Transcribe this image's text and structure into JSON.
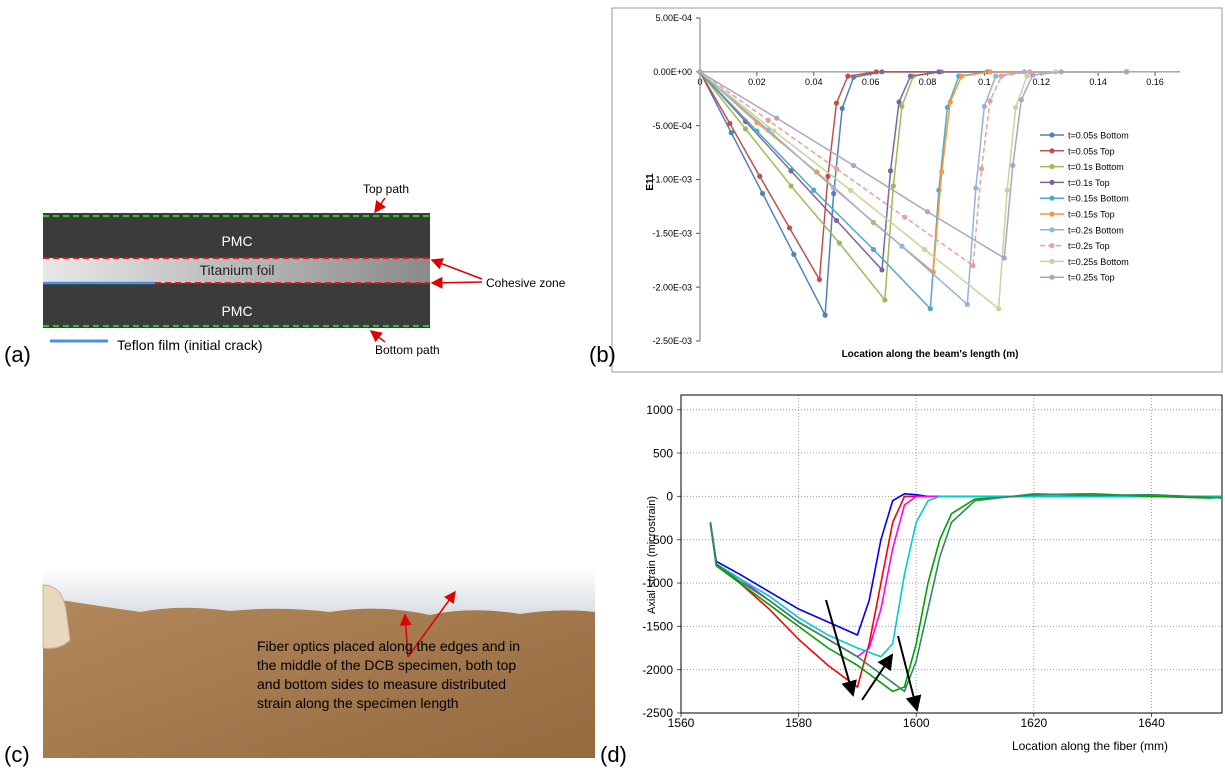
{
  "panel_labels": [
    "(a)",
    "(b)",
    "(c)",
    "(d)"
  ],
  "diagram": {
    "top_path": "Top path",
    "pmc_top": "PMC",
    "foil": "Titanium foil",
    "cohesive_zone": "Cohesive zone",
    "pmc_bottom": "PMC",
    "bottom_path": "Bottom path",
    "legend": "Teflon film (initial crack)"
  },
  "photo": {
    "caption_lines": [
      "Fiber optics placed along the edges and in",
      "the middle of the DCB specimen, both top",
      "and bottom sides to measure distributed",
      "strain along the specimen length"
    ]
  },
  "chart_data": [
    {
      "type": "line",
      "xlabel": "Location along the beam's length (m)",
      "ylabel": "E11",
      "xlim": [
        0,
        0.16
      ],
      "xticks": [
        0,
        0.02,
        0.04,
        0.06,
        0.08,
        0.1,
        0.12,
        0.14,
        0.16
      ],
      "ylim": [
        -0.0025,
        0.0005
      ],
      "yticks": [
        {
          "value": 0.0005,
          "label": "5.00E-04"
        },
        {
          "value": 0,
          "label": "0.00E+00"
        },
        {
          "value": -0.0005,
          "label": "-5.00E-04"
        },
        {
          "value": -0.001,
          "label": "-1.00E-03"
        },
        {
          "value": -0.0015,
          "label": "-1.50E-03"
        },
        {
          "value": -0.002,
          "label": "-2.00E-03"
        },
        {
          "value": -0.0025,
          "label": "-2.50E-03"
        }
      ],
      "grid": false,
      "legend": "right",
      "series": [
        {
          "name": "t=0.05s Bottom",
          "color": "#4f81bd",
          "x": [
            0,
            0.011,
            0.022,
            0.033,
            0.044,
            0.047,
            0.05,
            0.054,
            0.064,
            0.15
          ],
          "values": [
            0,
            -0.000565,
            -0.00113,
            -0.001695,
            -0.00226,
            -0.00113,
            -0.00034,
            -5e-05,
            0,
            0
          ]
        },
        {
          "name": "t=0.05s Top",
          "color": "#c0504d",
          "x": [
            0,
            0.0105,
            0.021,
            0.0315,
            0.042,
            0.045,
            0.048,
            0.052,
            0.062,
            0.15
          ],
          "values": [
            0,
            -0.00048,
            -0.00097,
            -0.00145,
            -0.00193,
            -0.00097,
            -0.00029,
            -4e-05,
            0,
            0
          ]
        },
        {
          "name": "t=0.1s Bottom",
          "color": "#9bbb59",
          "x": [
            0,
            0.016,
            0.032,
            0.049,
            0.065,
            0.068,
            0.071,
            0.075,
            0.085,
            0.15
          ],
          "values": [
            0,
            -0.00053,
            -0.00106,
            -0.00159,
            -0.00212,
            -0.00106,
            -0.00032,
            -4e-05,
            0,
            0
          ]
        },
        {
          "name": "t=0.1s Top",
          "color": "#8064a2",
          "x": [
            0,
            0.016,
            0.032,
            0.048,
            0.064,
            0.067,
            0.07,
            0.074,
            0.084,
            0.15
          ],
          "values": [
            0,
            -0.00046,
            -0.00092,
            -0.00138,
            -0.00184,
            -0.00092,
            -0.00028,
            -4e-05,
            0,
            0
          ]
        },
        {
          "name": "t=0.15s Bottom",
          "color": "#4bacc6",
          "x": [
            0,
            0.02,
            0.04,
            0.061,
            0.081,
            0.084,
            0.087,
            0.091,
            0.101,
            0.15
          ],
          "values": [
            0,
            -0.00055,
            -0.0011,
            -0.00165,
            -0.0022,
            -0.0011,
            -0.00033,
            -4e-05,
            0,
            0
          ]
        },
        {
          "name": "t=0.15s Top",
          "color": "#f79646",
          "x": [
            0,
            0.02,
            0.041,
            0.061,
            0.082,
            0.085,
            0.088,
            0.092,
            0.102,
            0.15
          ],
          "values": [
            0,
            -0.00047,
            -0.00093,
            -0.0014,
            -0.00186,
            -0.00093,
            -0.00028,
            -4e-05,
            0,
            0
          ]
        },
        {
          "name": "t=0.2s Bottom",
          "color": "#95b3d7",
          "x": [
            0,
            0.024,
            0.047,
            0.071,
            0.094,
            0.097,
            0.1,
            0.104,
            0.114,
            0.15
          ],
          "values": [
            0,
            -0.00054,
            -0.00108,
            -0.00162,
            -0.00216,
            -0.00108,
            -0.00032,
            -4e-05,
            0,
            0
          ]
        },
        {
          "name": "t=0.2s Top",
          "color": "#e6a0a0",
          "dash": true,
          "x": [
            0,
            0.024,
            0.048,
            0.072,
            0.096,
            0.099,
            0.102,
            0.106,
            0.116,
            0.15
          ],
          "values": [
            0,
            -0.00045,
            -0.0009,
            -0.00135,
            -0.0018,
            -0.0009,
            -0.00027,
            -4e-05,
            0,
            0
          ]
        },
        {
          "name": "t=0.25s Bottom",
          "color": "#c3d69b",
          "x": [
            0,
            0.026,
            0.053,
            0.079,
            0.105,
            0.108,
            0.111,
            0.115,
            0.125,
            0.15
          ],
          "values": [
            0,
            -0.00055,
            -0.0011,
            -0.00165,
            -0.0022,
            -0.0011,
            -0.00033,
            -4e-05,
            0,
            0
          ]
        },
        {
          "name": "t=0.25s Top",
          "color": "#b3a2c7",
          "x": [
            0,
            0.027,
            0.054,
            0.08,
            0.107,
            0.11,
            0.113,
            0.117,
            0.127,
            0.15
          ],
          "values": [
            0,
            -0.00043,
            -0.00087,
            -0.0013,
            -0.00173,
            -0.00087,
            -0.00026,
            -3e-05,
            0,
            0
          ]
        }
      ]
    },
    {
      "type": "line",
      "xlabel": "Location along the fiber (mm)",
      "ylabel": "Axial strain (microstrain)",
      "xlim": [
        1560,
        1652
      ],
      "xticks": [
        1560,
        1580,
        1600,
        1620,
        1640
      ],
      "ylim": [
        -2500,
        1170
      ],
      "yticks": [
        1000,
        500,
        0,
        -500,
        -1000,
        -1500,
        -2000,
        -2500
      ],
      "grid": true,
      "x": [
        1565,
        1566,
        1570,
        1575,
        1580,
        1585,
        1590,
        1592,
        1594,
        1596,
        1598,
        1600,
        1602,
        1604,
        1606,
        1610,
        1615,
        1620,
        1630,
        1640,
        1650,
        1652
      ],
      "series": [
        {
          "color": "#ff0000",
          "values": [
            -300,
            -800,
            -1000,
            -1300,
            -1650,
            -1950,
            -2200,
            -1700,
            -1000,
            -300,
            0,
            0,
            0,
            0,
            0,
            0,
            0,
            0,
            0,
            0,
            0,
            0
          ]
        },
        {
          "color": "#0000ff",
          "values": [
            -300,
            -750,
            -900,
            -1100,
            -1300,
            -1450,
            -1600,
            -1200,
            -500,
            -50,
            30,
            20,
            0,
            0,
            0,
            0,
            0,
            0,
            0,
            0,
            0,
            0
          ]
        },
        {
          "color": "#ff00ff",
          "values": [
            -320,
            -780,
            -950,
            -1200,
            -1450,
            -1650,
            -1850,
            -1750,
            -1300,
            -600,
            -100,
            0,
            0,
            0,
            0,
            0,
            0,
            0,
            0,
            0,
            0,
            0
          ]
        },
        {
          "color": "#00cccc",
          "values": [
            -310,
            -780,
            -950,
            -1150,
            -1400,
            -1600,
            -1750,
            -1800,
            -1850,
            -1700,
            -900,
            -300,
            -50,
            0,
            0,
            0,
            0,
            0,
            0,
            0,
            0,
            0
          ]
        },
        {
          "color": "#00a000",
          "values": [
            -300,
            -800,
            -1000,
            -1250,
            -1500,
            -1750,
            -1950,
            -2050,
            -2150,
            -2250,
            -2200,
            -1700,
            -1000,
            -500,
            -200,
            -30,
            -10,
            20,
            30,
            0,
            -20,
            -10
          ]
        },
        {
          "color": "#2e8b57",
          "values": [
            -300,
            -780,
            -980,
            -1200,
            -1450,
            -1650,
            -1850,
            -1950,
            -2050,
            -2150,
            -2250,
            -1900,
            -1300,
            -700,
            -300,
            -50,
            -10,
            30,
            10,
            20,
            -10,
            -20
          ]
        }
      ]
    }
  ]
}
